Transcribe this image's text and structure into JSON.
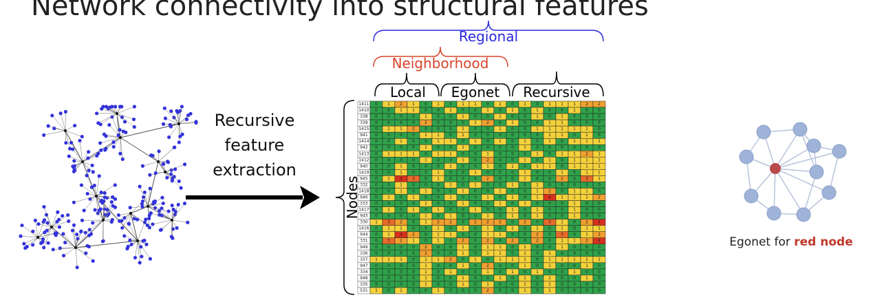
{
  "header": {
    "title": "Network connectivity into structural features"
  },
  "process": {
    "lines": [
      "Recursive",
      "feature",
      "extraction"
    ]
  },
  "brackets": {
    "regional": "Regional",
    "neighborhood": "Neighborhood",
    "local": "Local",
    "egonet": "Egonet",
    "recursive": "Recursive"
  },
  "heatmap": {
    "axis_label": "Nodes",
    "rows": [
      {
        "label": "1411",
        "values": [
          0,
          1,
          2,
          1,
          0,
          1,
          0,
          1,
          1,
          0,
          1,
          0,
          1,
          0,
          1,
          1,
          1,
          2,
          2
        ]
      },
      {
        "label": "1410",
        "values": [
          0,
          0,
          1,
          1,
          0,
          0,
          1,
          0,
          0,
          1,
          0,
          1,
          0,
          1,
          0,
          0,
          1,
          0,
          0
        ]
      },
      {
        "label": "338",
        "values": [
          0,
          0,
          0,
          0,
          1,
          0,
          0,
          1,
          0,
          0,
          1,
          0,
          0,
          1,
          0,
          1,
          0,
          0,
          0
        ]
      },
      {
        "label": "339",
        "values": [
          0,
          0,
          0,
          0,
          2,
          0,
          0,
          0,
          1,
          2,
          0,
          1,
          0,
          0,
          1,
          1,
          0,
          0,
          0
        ]
      },
      {
        "label": "1415",
        "values": [
          0,
          1,
          1,
          2,
          0,
          0,
          0,
          1,
          0,
          0,
          1,
          0,
          0,
          1,
          1,
          1,
          1,
          1,
          0
        ]
      },
      {
        "label": "941",
        "values": [
          0,
          0,
          0,
          0,
          1,
          1,
          0,
          1,
          0,
          0,
          0,
          0,
          0,
          0,
          1,
          1,
          0,
          1,
          0
        ]
      },
      {
        "label": "1414",
        "values": [
          0,
          0,
          1,
          0,
          0,
          1,
          1,
          0,
          1,
          0,
          1,
          0,
          1,
          0,
          1,
          0,
          1,
          1,
          1
        ]
      },
      {
        "label": "942",
        "values": [
          0,
          0,
          0,
          0,
          1,
          0,
          0,
          1,
          0,
          0,
          0,
          0,
          1,
          0,
          0,
          0,
          0,
          0,
          0
        ]
      },
      {
        "label": "1413",
        "values": [
          0,
          1,
          1,
          1,
          0,
          1,
          1,
          0,
          0,
          1,
          0,
          0,
          0,
          1,
          0,
          1,
          1,
          2,
          1
        ]
      },
      {
        "label": "1412",
        "values": [
          0,
          0,
          0,
          0,
          1,
          0,
          0,
          1,
          0,
          2,
          0,
          0,
          1,
          0,
          1,
          0,
          1,
          1,
          1
        ]
      },
      {
        "label": "940",
        "values": [
          0,
          0,
          1,
          0,
          0,
          0,
          1,
          0,
          0,
          1,
          0,
          1,
          0,
          1,
          1,
          0,
          1,
          1,
          1
        ]
      },
      {
        "label": "1419",
        "values": [
          0,
          0,
          1,
          0,
          0,
          1,
          0,
          0,
          1,
          0,
          0,
          0,
          1,
          0,
          0,
          1,
          0,
          1,
          1
        ]
      },
      {
        "label": "945",
        "values": [
          0,
          1,
          4,
          3,
          0,
          1,
          0,
          0,
          0,
          2,
          0,
          0,
          1,
          0,
          0,
          2,
          0,
          3,
          1
        ]
      },
      {
        "label": "332",
        "values": [
          0,
          0,
          1,
          0,
          0,
          0,
          1,
          0,
          1,
          0,
          0,
          1,
          0,
          1,
          0,
          0,
          0,
          0,
          0
        ]
      },
      {
        "label": "1418",
        "values": [
          0,
          0,
          1,
          0,
          1,
          0,
          0,
          1,
          0,
          0,
          1,
          0,
          0,
          1,
          2,
          0,
          1,
          1,
          0
        ]
      },
      {
        "label": "946",
        "values": [
          0,
          1,
          0,
          1,
          0,
          0,
          1,
          0,
          0,
          1,
          0,
          1,
          0,
          1,
          4,
          1,
          1,
          1,
          2
        ]
      },
      {
        "label": "333",
        "values": [
          0,
          0,
          0,
          0,
          1,
          0,
          0,
          1,
          0,
          0,
          1,
          0,
          1,
          0,
          0,
          0,
          1,
          0,
          0
        ]
      },
      {
        "label": "1417",
        "values": [
          0,
          1,
          0,
          1,
          0,
          1,
          0,
          0,
          1,
          0,
          0,
          1,
          0,
          1,
          0,
          0,
          1,
          0,
          0
        ]
      },
      {
        "label": "943",
        "values": [
          0,
          0,
          0,
          0,
          1,
          0,
          1,
          0,
          0,
          1,
          0,
          1,
          0,
          1,
          0,
          0,
          1,
          0,
          0
        ]
      },
      {
        "label": "330",
        "values": [
          1,
          3,
          2,
          0,
          1,
          2,
          2,
          0,
          2,
          2,
          2,
          0,
          2,
          0,
          3,
          1,
          0,
          2,
          4
        ]
      },
      {
        "label": "1416",
        "values": [
          0,
          1,
          1,
          0,
          0,
          1,
          0,
          1,
          0,
          1,
          0,
          1,
          0,
          1,
          0,
          1,
          0,
          1,
          1
        ]
      },
      {
        "label": "944",
        "values": [
          0,
          1,
          4,
          2,
          0,
          1,
          1,
          0,
          0,
          1,
          1,
          0,
          0,
          2,
          0,
          3,
          0,
          1,
          2
        ]
      },
      {
        "label": "331",
        "values": [
          0,
          3,
          2,
          1,
          0,
          1,
          0,
          2,
          0,
          2,
          0,
          2,
          0,
          2,
          0,
          1,
          1,
          2,
          4
        ]
      },
      {
        "label": "949",
        "values": [
          0,
          0,
          0,
          0,
          2,
          0,
          0,
          1,
          0,
          1,
          1,
          0,
          1,
          0,
          0,
          1,
          0,
          0,
          0
        ]
      },
      {
        "label": "336",
        "values": [
          0,
          0,
          0,
          0,
          2,
          0,
          0,
          1,
          0,
          1,
          1,
          0,
          1,
          0,
          1,
          0,
          0,
          0,
          0
        ]
      },
      {
        "label": "337",
        "values": [
          1,
          1,
          1,
          0,
          1,
          1,
          2,
          0,
          1,
          0,
          1,
          1,
          1,
          0,
          1,
          1,
          1,
          1,
          1
        ]
      },
      {
        "label": "947",
        "values": [
          0,
          0,
          0,
          0,
          1,
          0,
          0,
          1,
          0,
          2,
          0,
          0,
          1,
          0,
          1,
          0,
          0,
          1,
          0
        ]
      },
      {
        "label": "334",
        "values": [
          0,
          0,
          0,
          0,
          1,
          0,
          1,
          0,
          0,
          1,
          0,
          1,
          0,
          1,
          0,
          0,
          1,
          0,
          0
        ]
      },
      {
        "label": "948",
        "values": [
          0,
          0,
          0,
          0,
          1,
          0,
          0,
          1,
          0,
          0,
          1,
          0,
          1,
          0,
          1,
          0,
          0,
          1,
          0
        ]
      },
      {
        "label": "335",
        "values": [
          0,
          0,
          0,
          0,
          1,
          0,
          0,
          1,
          0,
          1,
          0,
          0,
          1,
          0,
          1,
          0,
          0,
          0,
          0
        ]
      },
      {
        "label": "531",
        "values": [
          1,
          0,
          1,
          0,
          0,
          1,
          0,
          0,
          0,
          2,
          0,
          0,
          1,
          0,
          1,
          0,
          0,
          0,
          0
        ]
      }
    ]
  },
  "egonet": {
    "caption": "Egonet for ",
    "highlight": "red node"
  }
}
